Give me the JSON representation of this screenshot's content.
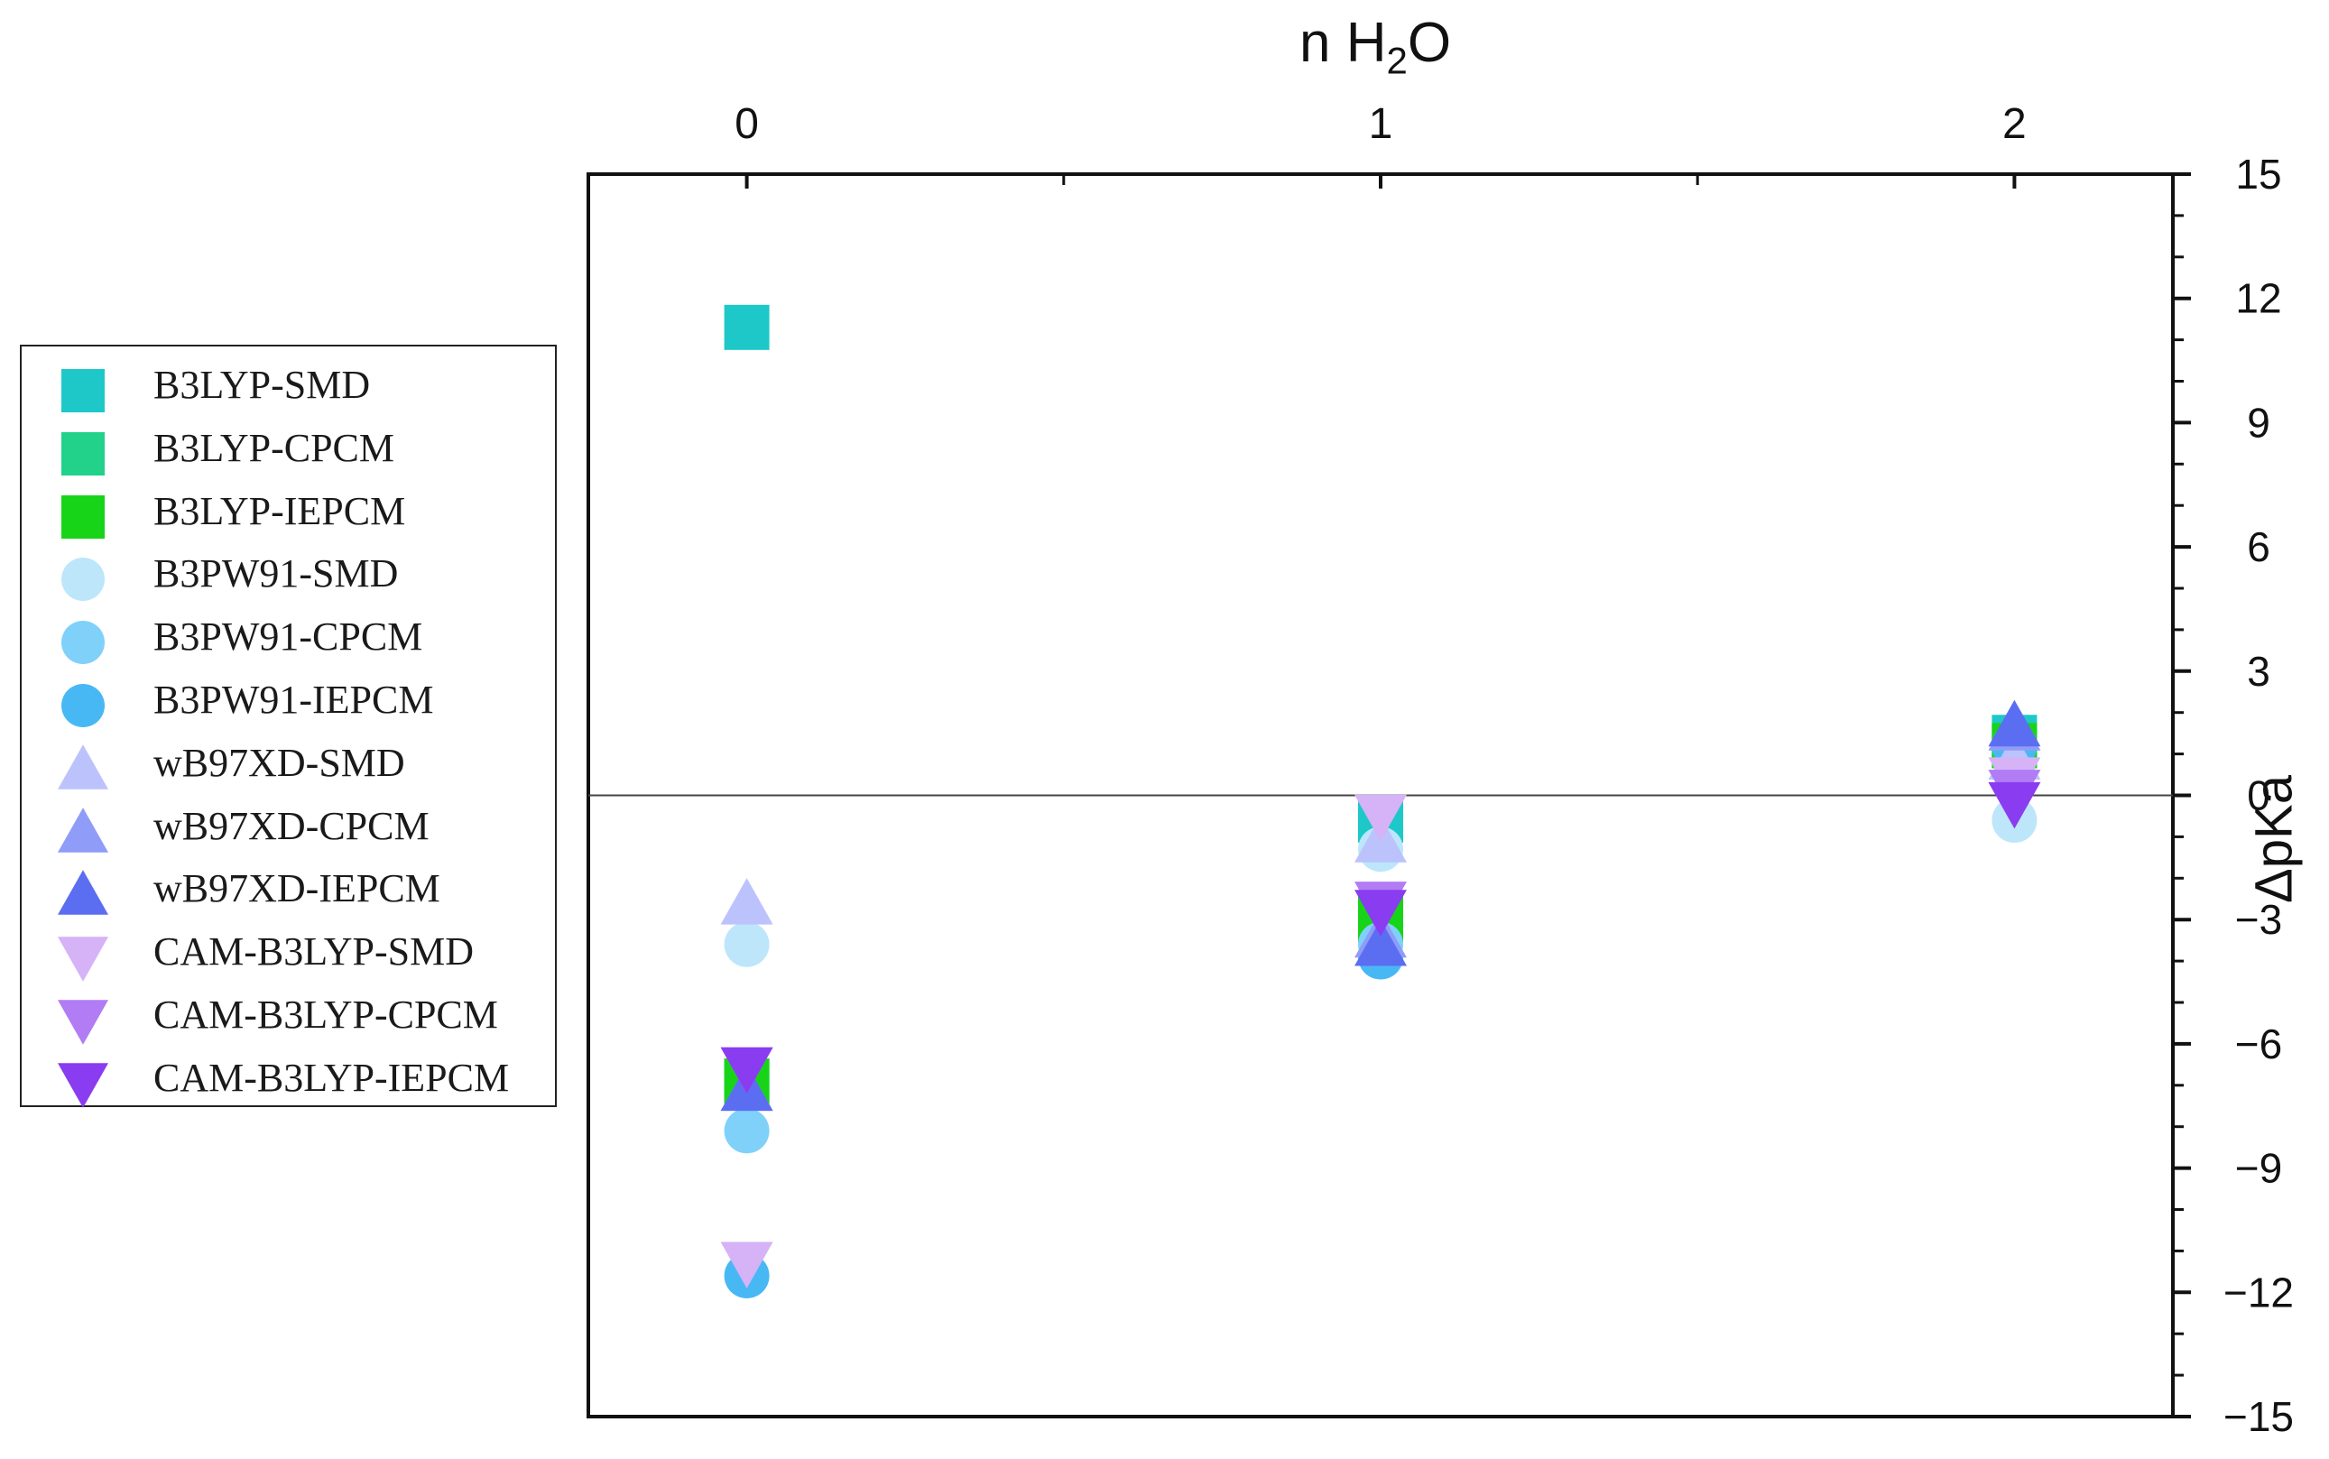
{
  "chart_data": {
    "type": "scatter",
    "title": "n H₂O",
    "title_parts": {
      "main": "n H",
      "sub": "2",
      "tail": "O"
    },
    "xlabel": "n H₂O",
    "ylabel": "ΔpKa",
    "x_ticks": [
      "0",
      "1",
      "2"
    ],
    "xlim": [
      -0.25,
      2.25
    ],
    "ylim": [
      -15,
      15
    ],
    "y_ticks": [
      "−15",
      "−12",
      "−9",
      "−6",
      "−3",
      "0",
      "3",
      "6",
      "9",
      "12",
      "15"
    ],
    "x_axis_position": "top",
    "y_axis_position": "right",
    "grid": false,
    "zero_line": true,
    "legend_position": "left-outside",
    "series": [
      {
        "name": "B3LYP-SMD",
        "marker": "square",
        "color": "#1ec8c8",
        "x": [
          0,
          1,
          2
        ],
        "y": [
          11.3,
          -0.6,
          1.4
        ]
      },
      {
        "name": "B3LYP-CPCM",
        "marker": "square",
        "color": "#22d18a",
        "x": [
          0,
          1,
          2
        ],
        "y": [
          -6.9,
          -2.9,
          1.2
        ]
      },
      {
        "name": "B3LYP-IEPCM",
        "marker": "square",
        "color": "#18d418",
        "x": [
          0,
          1,
          2
        ],
        "y": [
          -6.9,
          -3.0,
          1.2
        ]
      },
      {
        "name": "B3PW91-SMD",
        "marker": "circle",
        "color": "#bde6fb",
        "x": [
          0,
          1,
          2
        ],
        "y": [
          -3.6,
          -1.3,
          -0.6
        ]
      },
      {
        "name": "B3PW91-CPCM",
        "marker": "circle",
        "color": "#7fd1fa",
        "x": [
          0,
          1,
          2
        ],
        "y": [
          -8.1,
          -3.6,
          1.2
        ]
      },
      {
        "name": "B3PW91-IEPCM",
        "marker": "circle",
        "color": "#48b8f5",
        "x": [
          0,
          1,
          2
        ],
        "y": [
          -11.6,
          -3.9,
          1.2
        ]
      },
      {
        "name": "wB97XD-SMD",
        "marker": "triangle-up",
        "color": "#bcc3fc",
        "x": [
          0,
          1,
          2
        ],
        "y": [
          -2.6,
          -1.1,
          0.9
        ]
      },
      {
        "name": "wB97XD-CPCM",
        "marker": "triangle-up",
        "color": "#8f9cf8",
        "x": [
          0,
          1,
          2
        ],
        "y": [
          -7.1,
          -3.4,
          1.6
        ]
      },
      {
        "name": "wB97XD-IEPCM",
        "marker": "triangle-up",
        "color": "#5b6ef2",
        "x": [
          0,
          1,
          2
        ],
        "y": [
          -7.1,
          -3.6,
          1.7
        ]
      },
      {
        "name": "CAM-B3LYP-SMD",
        "marker": "triangle-down",
        "color": "#d6b2f7",
        "x": [
          0,
          1,
          2
        ],
        "y": [
          -11.3,
          -0.5,
          0.4
        ]
      },
      {
        "name": "CAM-B3LYP-CPCM",
        "marker": "triangle-down",
        "color": "#b27cf4",
        "x": [
          0,
          1,
          2
        ],
        "y": [
          -6.6,
          -2.6,
          0.1
        ]
      },
      {
        "name": "CAM-B3LYP-IEPCM",
        "marker": "triangle-down",
        "color": "#8a3cf0",
        "x": [
          0,
          1,
          2
        ],
        "y": [
          -6.6,
          -2.8,
          -0.2
        ]
      }
    ]
  }
}
